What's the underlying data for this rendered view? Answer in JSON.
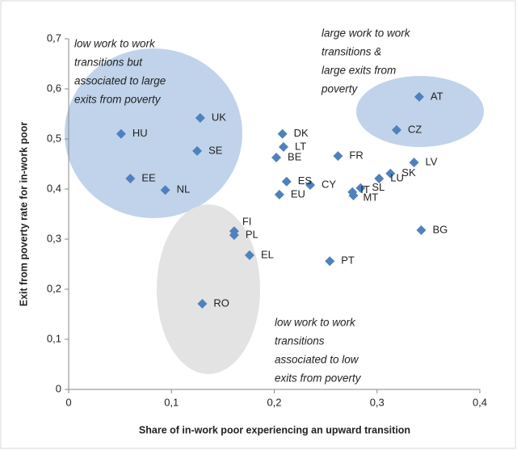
{
  "chart_data": {
    "type": "scatter",
    "x_label": "Share of in-work poor experiencing an upward transition",
    "y_label": "Exit from poverty rate for in-work poor",
    "color": "#4f81bd",
    "xlim": [
      0,
      0.4
    ],
    "xticks": [
      0,
      {
        "value": 0.1,
        "label": "0,1"
      },
      {
        "value": 0.2,
        "label": "0,2"
      },
      {
        "value": 0.3,
        "label": "0,3"
      },
      {
        "value": 0.4,
        "label": "0,4"
      }
    ],
    "ylim": [
      0,
      0.7
    ],
    "yticks": [
      0,
      {
        "value": 0.1,
        "label": "0,1"
      },
      {
        "value": 0.2,
        "label": "0,2"
      },
      {
        "value": 0.3,
        "label": "0,3"
      },
      {
        "value": 0.4,
        "label": "0,4"
      },
      {
        "value": 0.5,
        "label": "0,5"
      },
      {
        "value": 0.6,
        "label": "0,6"
      },
      {
        "value": 0.7,
        "label": "0,7"
      }
    ],
    "labels": [
      "AT",
      "CZ",
      "LV",
      "SK",
      "LU",
      "SL",
      "IT",
      "MT",
      "BG",
      "PT",
      "FR",
      "CY",
      "ES",
      "EU",
      "BE",
      "LT",
      "DK",
      "FI",
      "PL",
      "EL",
      "RO",
      "UK",
      "SE",
      "HU",
      "EE",
      "NL"
    ],
    "x": [
      0.341,
      0.319,
      0.336,
      0.313,
      0.302,
      0.284,
      0.276,
      0.277,
      0.343,
      0.254,
      0.262,
      0.235,
      0.212,
      0.205,
      0.202,
      0.209,
      0.208,
      0.161,
      0.161,
      0.176,
      0.13,
      0.128,
      0.125,
      0.051,
      0.06,
      0.094
    ],
    "y": [
      0.584,
      0.518,
      0.453,
      0.431,
      0.421,
      0.402,
      0.394,
      0.387,
      0.318,
      0.256,
      0.466,
      0.408,
      0.415,
      0.389,
      0.463,
      0.484,
      0.51,
      0.316,
      0.308,
      0.268,
      0.171,
      0.542,
      0.476,
      0.51,
      0.421,
      0.398
    ],
    "annotations": [
      [
        "low work to work",
        "transitions  but",
        "associated to large",
        "exits from poverty"
      ],
      [
        "large work to work",
        "transitions  &",
        "large exits from",
        "poverty"
      ],
      [
        "low work to work",
        "transitions",
        "associated to low",
        "exits from poverty"
      ]
    ]
  }
}
